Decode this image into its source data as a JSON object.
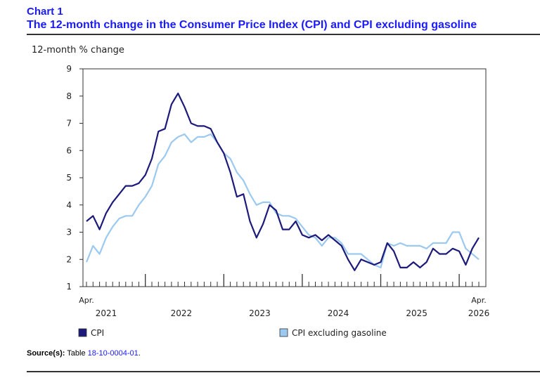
{
  "header": {
    "chart_number": "Chart 1",
    "title": "The 12-month change in the Consumer Price Index (CPI) and CPI excluding gasoline"
  },
  "source": {
    "label": "Source(s):",
    "text": "Table",
    "link": "18-10-0004-01",
    "end": "."
  },
  "colors": {
    "cpi": "#1c1a7a",
    "cpi_ex_gas": "#9cc9f0",
    "title": "#1a1aff"
  },
  "chart_data": {
    "type": "line",
    "ylabel": "12-month % change",
    "ylim": [
      1,
      9
    ],
    "yticks": [
      1,
      2,
      3,
      4,
      5,
      6,
      7,
      8,
      9
    ],
    "grid": false,
    "legend_position": "bottom",
    "x_start_label": "Apr.",
    "x_end_label": "Apr.",
    "year_labels": [
      "2021",
      "2022",
      "2023",
      "2024",
      "2025",
      "2026"
    ],
    "x": [
      "2021-04",
      "2021-05",
      "2021-06",
      "2021-07",
      "2021-08",
      "2021-09",
      "2021-10",
      "2021-11",
      "2021-12",
      "2022-01",
      "2022-02",
      "2022-03",
      "2022-04",
      "2022-05",
      "2022-06",
      "2022-07",
      "2022-08",
      "2022-09",
      "2022-10",
      "2022-11",
      "2022-12",
      "2023-01",
      "2023-02",
      "2023-03",
      "2023-04",
      "2023-05",
      "2023-06",
      "2023-07",
      "2023-08",
      "2023-09",
      "2023-10",
      "2023-11",
      "2023-12",
      "2024-01",
      "2024-02",
      "2024-03",
      "2024-04",
      "2024-05",
      "2024-06",
      "2024-07",
      "2024-08",
      "2024-09",
      "2024-10",
      "2024-11",
      "2024-12",
      "2025-01",
      "2025-02",
      "2025-03",
      "2025-04",
      "2025-05",
      "2025-06",
      "2025-07",
      "2025-08",
      "2025-09",
      "2025-10",
      "2025-11",
      "2025-12",
      "2026-01",
      "2026-02",
      "2026-03",
      "2026-04"
    ],
    "series": [
      {
        "name": "CPI",
        "values": [
          3.4,
          3.6,
          3.1,
          3.7,
          4.1,
          4.4,
          4.7,
          4.7,
          4.8,
          5.1,
          5.7,
          6.7,
          6.8,
          7.7,
          8.1,
          7.6,
          7.0,
          6.9,
          6.9,
          6.8,
          6.3,
          5.9,
          5.2,
          4.3,
          4.4,
          3.4,
          2.8,
          3.3,
          4.0,
          3.8,
          3.1,
          3.1,
          3.4,
          2.9,
          2.8,
          2.9,
          2.7,
          2.9,
          2.7,
          2.5,
          2.0,
          1.6,
          2.0,
          1.9,
          1.8,
          1.9,
          2.6,
          2.3,
          1.7,
          1.7,
          1.9,
          1.7,
          1.9,
          2.4,
          2.2,
          2.2,
          2.4,
          2.3,
          1.8,
          2.4,
          2.8
        ]
      },
      {
        "name": "CPI excluding gasoline",
        "values": [
          1.9,
          2.5,
          2.2,
          2.8,
          3.2,
          3.5,
          3.6,
          3.6,
          4.0,
          4.3,
          4.7,
          5.5,
          5.8,
          6.3,
          6.5,
          6.6,
          6.3,
          6.5,
          6.5,
          6.6,
          6.3,
          5.9,
          5.7,
          5.2,
          4.9,
          4.4,
          4.0,
          4.1,
          4.1,
          3.7,
          3.6,
          3.6,
          3.5,
          3.2,
          2.9,
          2.8,
          2.5,
          2.8,
          2.8,
          2.6,
          2.2,
          2.2,
          2.2,
          2.0,
          1.8,
          1.7,
          2.6,
          2.5,
          2.6,
          2.5,
          2.5,
          2.5,
          2.4,
          2.6,
          2.6,
          2.6,
          3.0,
          3.0,
          2.4,
          2.2,
          2.0
        ]
      }
    ]
  }
}
